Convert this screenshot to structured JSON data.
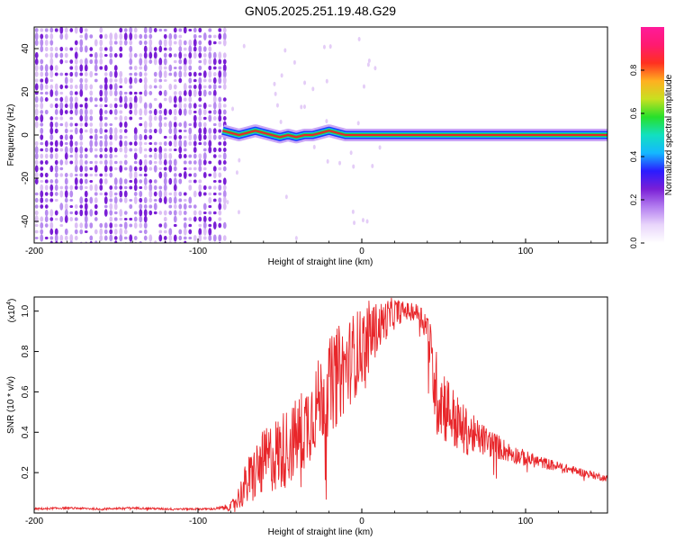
{
  "title": "GN05.2025.251.19.48.G29",
  "colors": {
    "snr_line": "#e8262a",
    "noise_purple": "#7a1fd6",
    "noise_light": "#d8b8f4",
    "track_red": "#e8262a",
    "track_green": "#27c94a",
    "track_blue": "#1a3cff"
  },
  "chart_data": [
    {
      "id": "spectrogram",
      "type": "heatmap",
      "xlabel": "Height of straight line (km)",
      "ylabel": "Frequency (Hz)",
      "xlim": [
        -200,
        150
      ],
      "ylim": [
        -50,
        50
      ],
      "xticks": [
        -200,
        -100,
        0,
        100
      ],
      "xtick_labels": [
        "-200",
        "-100",
        "0",
        "100"
      ],
      "yticks": [
        -40,
        -20,
        0,
        20,
        40
      ],
      "ytick_labels": [
        "-40",
        "-20",
        "0",
        "20",
        "40"
      ],
      "noise_region_x": [
        -200,
        -85
      ],
      "signal_track": {
        "x": [
          -85,
          -80,
          -75,
          -70,
          -65,
          -60,
          -55,
          -50,
          -45,
          -40,
          -35,
          -30,
          -25,
          -20,
          -15,
          -10,
          -5,
          0,
          150
        ],
        "y": [
          2,
          1,
          0,
          1,
          2,
          1,
          0,
          -1,
          0,
          -1,
          0,
          0,
          1,
          2,
          1,
          0,
          0,
          0,
          0
        ]
      },
      "colorbar": {
        "label": "Normalized spectral amplitude",
        "range": [
          0,
          1
        ],
        "ticks": [
          0.0,
          0.2,
          0.4,
          0.6,
          0.8
        ],
        "tick_labels": [
          "0.0",
          "0.2",
          "0.4",
          "0.6",
          "0.8"
        ],
        "stops": [
          "#ffffff",
          "#e9d6fb",
          "#b47ef0",
          "#7a1fd6",
          "#2a1cff",
          "#14b8ff",
          "#12e0c0",
          "#27e02a",
          "#c8e020",
          "#ffb020",
          "#ff3020",
          "#ff1a70",
          "#ff1a9a"
        ]
      }
    },
    {
      "id": "snr",
      "type": "line",
      "xlabel": "Height of straight line (km)",
      "ylabel": "SNR (10 * v/v)",
      "y_scale_label": "(x10",
      "y_scale_exponent": "4",
      "y_scale_suffix": ")",
      "xlim": [
        -200,
        150
      ],
      "ylim": [
        0,
        1.07
      ],
      "xticks": [
        -200,
        -100,
        0,
        100
      ],
      "xtick_labels": [
        "-200",
        "-100",
        "0",
        "100"
      ],
      "yticks": [
        0.2,
        0.4,
        0.6,
        0.8,
        1.0
      ],
      "ytick_labels": [
        "0.2",
        "0.4",
        "0.6",
        "0.8",
        "1.0"
      ],
      "series": [
        {
          "name": "SNR",
          "x": [
            -200,
            -180,
            -160,
            -140,
            -120,
            -100,
            -90,
            -80,
            -75,
            -70,
            -65,
            -60,
            -55,
            -50,
            -45,
            -40,
            -35,
            -30,
            -25,
            -20,
            -15,
            -10,
            -5,
            0,
            5,
            10,
            15,
            20,
            25,
            30,
            35,
            40,
            45,
            50,
            55,
            60,
            70,
            80,
            90,
            100,
            110,
            120,
            130,
            140,
            150
          ],
          "y": [
            0.02,
            0.025,
            0.02,
            0.025,
            0.02,
            0.02,
            0.02,
            0.03,
            0.08,
            0.15,
            0.2,
            0.25,
            0.28,
            0.3,
            0.33,
            0.37,
            0.42,
            0.5,
            0.57,
            0.62,
            0.68,
            0.72,
            0.78,
            0.82,
            0.88,
            0.92,
            0.96,
            0.99,
            1.0,
            1.0,
            0.99,
            0.92,
            0.6,
            0.55,
            0.48,
            0.42,
            0.38,
            0.34,
            0.3,
            0.27,
            0.25,
            0.23,
            0.21,
            0.19,
            0.17
          ],
          "amplitude": [
            0.005,
            0.005,
            0.005,
            0.005,
            0.005,
            0.005,
            0.005,
            0.02,
            0.06,
            0.12,
            0.15,
            0.16,
            0.18,
            0.2,
            0.2,
            0.2,
            0.22,
            0.22,
            0.22,
            0.24,
            0.25,
            0.22,
            0.22,
            0.2,
            0.18,
            0.12,
            0.1,
            0.08,
            0.05,
            0.04,
            0.05,
            0.1,
            0.22,
            0.2,
            0.16,
            0.14,
            0.09,
            0.07,
            0.05,
            0.04,
            0.03,
            0.025,
            0.02,
            0.02,
            0.015
          ]
        }
      ]
    }
  ]
}
